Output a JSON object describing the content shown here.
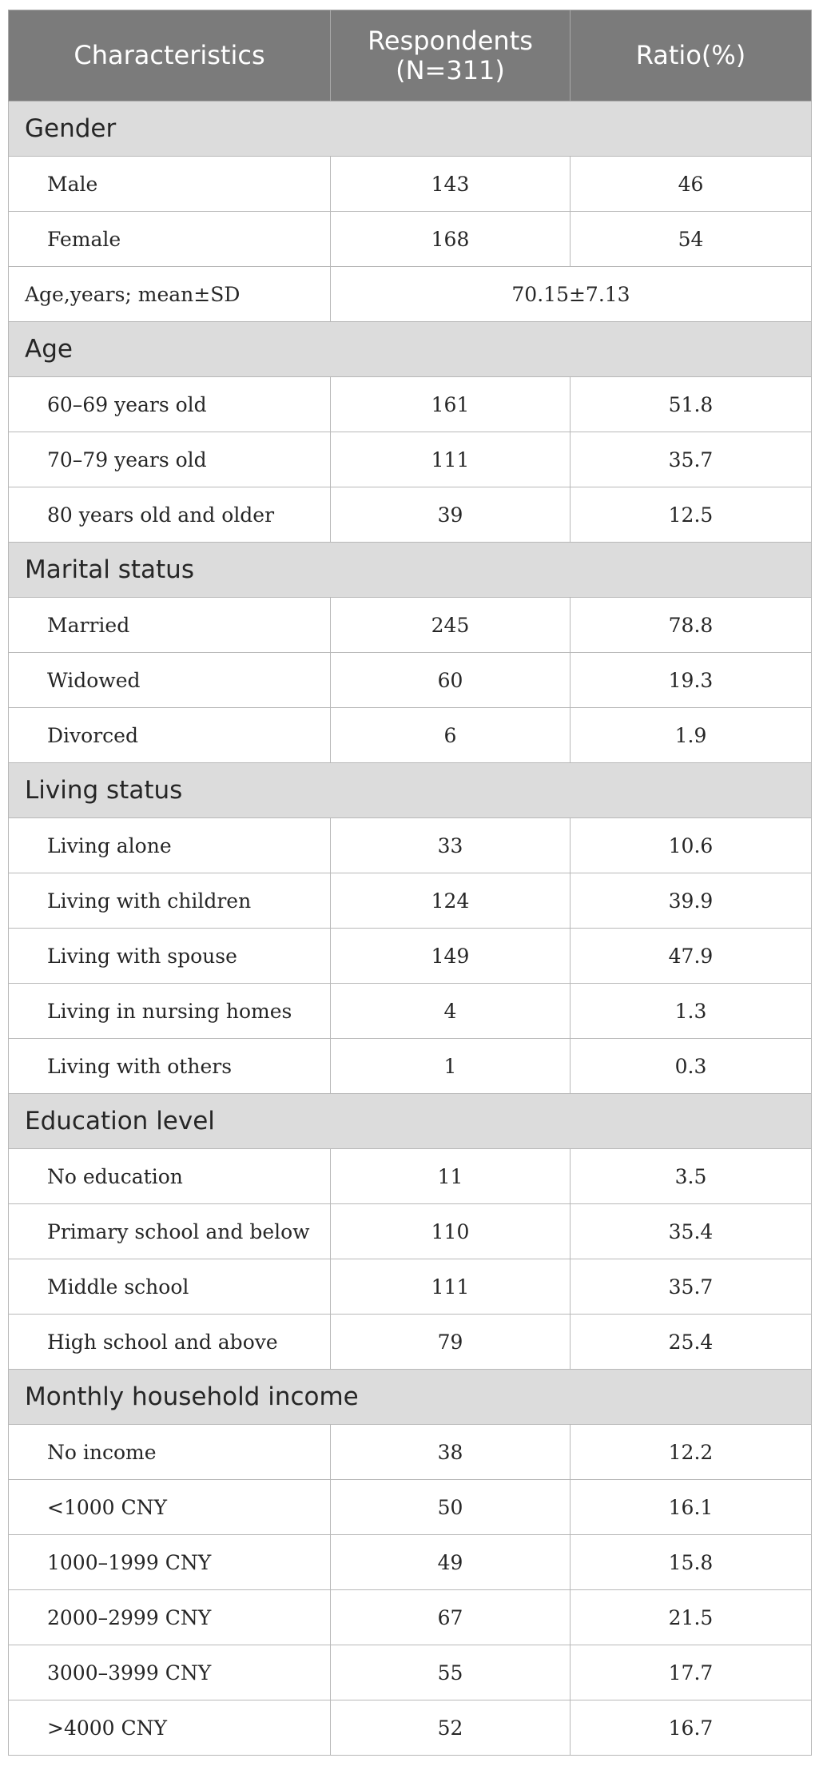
{
  "header": {
    "col1": "Characteristics",
    "col2_line1": "Respondents",
    "col2_line2": "(N=311)",
    "col3": "Ratio(%)"
  },
  "sections": [
    {
      "title": "Gender",
      "rows": [
        {
          "label": "Male",
          "n": "143",
          "pct": "46"
        },
        {
          "label": "Female",
          "n": "168",
          "pct": "54"
        }
      ]
    },
    {
      "title": "Age",
      "rows": [
        {
          "label": "60–69 years old",
          "n": "161",
          "pct": "51.8"
        },
        {
          "label": "70–79 years old",
          "n": "111",
          "pct": "35.7"
        },
        {
          "label": "80 years old and older",
          "n": "39",
          "pct": "12.5"
        }
      ]
    },
    {
      "title": "Marital status",
      "rows": [
        {
          "label": "Married",
          "n": "245",
          "pct": "78.8"
        },
        {
          "label": "Widowed",
          "n": "60",
          "pct": "19.3"
        },
        {
          "label": "Divorced",
          "n": "6",
          "pct": "1.9"
        }
      ]
    },
    {
      "title": "Living status",
      "rows": [
        {
          "label": "Living alone",
          "n": "33",
          "pct": "10.6"
        },
        {
          "label": "Living with children",
          "n": "124",
          "pct": "39.9"
        },
        {
          "label": "Living with spouse",
          "n": "149",
          "pct": "47.9"
        },
        {
          "label": "Living in nursing homes",
          "n": "4",
          "pct": "1.3"
        },
        {
          "label": "Living with others",
          "n": "1",
          "pct": "0.3"
        }
      ]
    },
    {
      "title": "Education level",
      "rows": [
        {
          "label": "No education",
          "n": "11",
          "pct": "3.5"
        },
        {
          "label": "Primary school and below",
          "n": "110",
          "pct": "35.4"
        },
        {
          "label": "Middle school",
          "n": "111",
          "pct": "35.7"
        },
        {
          "label": "High school and above",
          "n": "79",
          "pct": "25.4"
        }
      ]
    },
    {
      "title": "Monthly household income",
      "rows": [
        {
          "label": "No income",
          "n": "38",
          "pct": "12.2"
        },
        {
          "label": "<1000 CNY",
          "n": "50",
          "pct": "16.1"
        },
        {
          "label": "1000–1999 CNY",
          "n": "49",
          "pct": "15.8"
        },
        {
          "label": "2000–2999 CNY",
          "n": "67",
          "pct": "21.5"
        },
        {
          "label": "3000–3999 CNY",
          "n": "55",
          "pct": "17.7"
        },
        {
          "label": ">4000 CNY",
          "n": "52",
          "pct": "16.7"
        }
      ]
    }
  ],
  "age_mean": {
    "label": "Age,years; mean±SD",
    "value": "70.15±7.13"
  }
}
